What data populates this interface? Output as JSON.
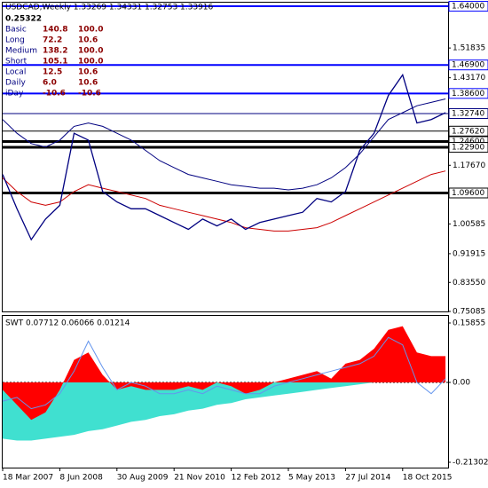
{
  "chart_data": [
    {
      "type": "line",
      "title": "USDCAD,Weekly  1.33269 1.34331 1.32753 1.33916",
      "subtitle": "0.25322",
      "info_table": [
        [
          "Basic",
          "140.8",
          "100.0"
        ],
        [
          "Long",
          "72.2",
          "10.6"
        ],
        [
          "Medium",
          "138.2",
          "100.0"
        ],
        [
          "Short",
          "105.1",
          "100.0"
        ],
        [
          "Local",
          "12.5",
          "10.6"
        ],
        [
          "Daily",
          "6.0",
          "10.6"
        ],
        [
          "iDay",
          "-10.6",
          "-10.6"
        ]
      ],
      "categories": [
        "18 Mar 2007",
        null,
        null,
        null,
        "8 Jun 2008",
        null,
        null,
        null,
        "30 Aug 2009",
        null,
        null,
        null,
        "21 Nov 2010",
        null,
        null,
        null,
        "12 Feb 2012",
        null,
        null,
        null,
        "5 May 2013",
        null,
        null,
        null,
        "27 Jul 2014",
        null,
        null,
        null,
        "18 Oct 2015",
        null,
        null,
        null
      ],
      "series": [
        {
          "color": "#cc0000",
          "values": [
            1.14,
            1.1,
            1.07,
            1.06,
            1.07,
            1.1,
            1.12,
            1.11,
            1.1,
            1.09,
            1.08,
            1.06,
            1.05,
            1.04,
            1.03,
            1.02,
            1.01,
            0.995,
            0.99,
            0.985,
            0.985,
            0.99,
            0.995,
            1.01,
            1.03,
            1.05,
            1.07,
            1.09,
            1.11,
            1.13,
            1.15,
            1.16
          ]
        },
        {
          "color": "#000080",
          "values": [
            1.31,
            1.27,
            1.24,
            1.23,
            1.25,
            1.29,
            1.3,
            1.29,
            1.27,
            1.25,
            1.22,
            1.19,
            1.17,
            1.15,
            1.14,
            1.13,
            1.12,
            1.115,
            1.11,
            1.11,
            1.105,
            1.11,
            1.12,
            1.14,
            1.17,
            1.21,
            1.26,
            1.31,
            1.33,
            1.35,
            1.36,
            1.37
          ]
        },
        {
          "color": "#000080",
          "values": [
            1.15,
            1.05,
            0.96,
            1.02,
            1.06,
            1.27,
            1.25,
            1.1,
            1.07,
            1.05,
            1.05,
            1.03,
            1.01,
            0.99,
            1.02,
            1.0,
            1.02,
            0.99,
            1.01,
            1.02,
            1.03,
            1.04,
            1.08,
            1.07,
            1.1,
            1.22,
            1.27,
            1.38,
            1.44,
            1.3,
            1.31,
            1.33
          ]
        }
      ],
      "levels": [
        {
          "value": 1.64,
          "label": "1.64000",
          "color": "#0000ff"
        },
        {
          "value": 1.469,
          "label": "1.46900",
          "color": "#0000ff"
        },
        {
          "value": 1.386,
          "label": "1.38600",
          "color": "#0000ff"
        },
        {
          "value": 1.3274,
          "label": "1.32740",
          "color": "#000080"
        },
        {
          "value": 1.2762,
          "label": "1.27620",
          "color": "#000000"
        },
        {
          "value": 1.246,
          "label": "1.24600",
          "color": "#000000"
        },
        {
          "value": 1.229,
          "label": "1.22900",
          "color": "#000000"
        },
        {
          "value": 1.096,
          "label": "1.09600",
          "color": "#000000"
        }
      ],
      "ylim": [
        0.7483,
        1.6479
      ],
      "yticks": [
        1.51835,
        {
          "value": 1.4317,
          "label": "1.43170"
        },
        {
          "value": 1.1767,
          "label": "1.17670"
        },
        1.00585,
        0.91915,
        {
          "value": 0.8355,
          "label": "0.83550"
        },
        0.75085
      ]
    },
    {
      "type": "line",
      "title": "SWT 0.07712 0.06066 0.01214",
      "series": [
        {
          "color": "#40e0d0",
          "style": "area",
          "values": [
            -0.15,
            -0.155,
            -0.155,
            -0.15,
            -0.145,
            -0.14,
            -0.13,
            -0.125,
            -0.115,
            -0.105,
            -0.1,
            -0.09,
            -0.085,
            -0.075,
            -0.07,
            -0.06,
            -0.055,
            -0.045,
            -0.04,
            -0.035,
            -0.03,
            -0.025,
            -0.02,
            -0.015,
            -0.01,
            -0.005,
            0.0,
            0.01,
            0.02,
            0.03,
            0.03,
            0.03
          ]
        },
        {
          "color": "#ff0000",
          "style": "area",
          "values": [
            -0.02,
            -0.06,
            -0.1,
            -0.08,
            -0.02,
            0.06,
            0.08,
            0.02,
            -0.02,
            -0.01,
            -0.02,
            -0.02,
            -0.02,
            -0.01,
            -0.02,
            0.0,
            -0.01,
            -0.03,
            -0.02,
            0.0,
            0.01,
            0.02,
            0.03,
            0.01,
            0.05,
            0.06,
            0.09,
            0.14,
            0.15,
            0.08,
            0.07,
            0.07
          ]
        },
        {
          "color": "#6495ed",
          "style": "line",
          "values": [
            -0.05,
            -0.04,
            -0.07,
            -0.06,
            -0.03,
            0.03,
            0.11,
            0.04,
            -0.02,
            0.0,
            -0.01,
            -0.03,
            -0.03,
            -0.02,
            -0.03,
            -0.01,
            -0.02,
            -0.03,
            -0.03,
            -0.01,
            0.0,
            0.01,
            0.02,
            0.03,
            0.04,
            0.05,
            0.07,
            0.12,
            0.1,
            0.0,
            -0.03,
            0.01
          ]
        }
      ],
      "ylim": [
        -0.2296,
        0.1775
      ],
      "yticks": [
        0.15855,
        {
          "value": 0,
          "label": "0.00"
        },
        -0.21302
      ]
    }
  ]
}
